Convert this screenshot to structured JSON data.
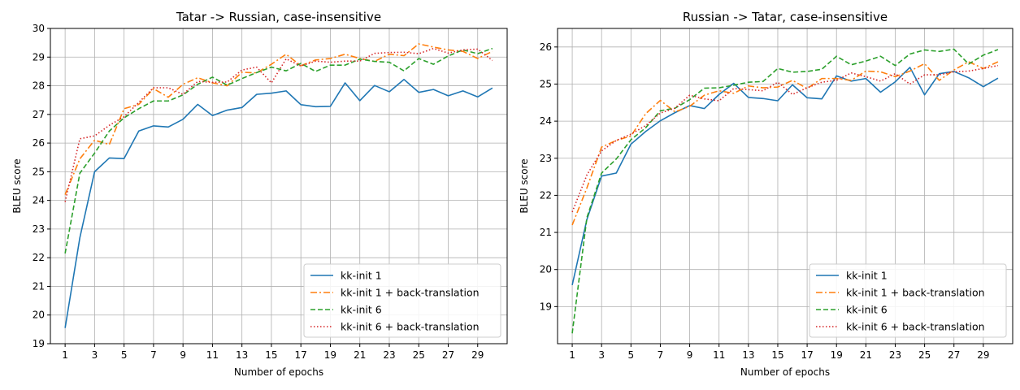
{
  "chart_data": [
    {
      "type": "line",
      "title": "Tatar -> Russian, case-insensitive",
      "xlabel": "Number of epochs",
      "ylabel": "BLEU score",
      "xlim": [
        0,
        31
      ],
      "ylim": [
        19,
        30
      ],
      "xticks": [
        1,
        3,
        5,
        7,
        9,
        11,
        13,
        15,
        17,
        19,
        21,
        23,
        25,
        27,
        29
      ],
      "yticks": [
        19,
        20,
        21,
        22,
        23,
        24,
        25,
        26,
        27,
        28,
        29,
        30
      ],
      "grid": true,
      "legend_position": "lower-right",
      "x": [
        1,
        2,
        3,
        4,
        5,
        6,
        7,
        8,
        9,
        10,
        11,
        12,
        13,
        14,
        15,
        16,
        17,
        18,
        19,
        20,
        21,
        22,
        23,
        24,
        25,
        26,
        27,
        28,
        29,
        30
      ],
      "series": [
        {
          "name": "kk-init 1",
          "color": "#1f77b4",
          "dash": "solid",
          "values": [
            19.55,
            22.7,
            25.0,
            25.48,
            25.46,
            26.42,
            26.6,
            26.56,
            26.83,
            27.35,
            26.96,
            27.15,
            27.24,
            27.7,
            27.74,
            27.82,
            27.34,
            27.27,
            27.28,
            28.1,
            27.48,
            28.01,
            27.79,
            28.22,
            27.77,
            27.87,
            27.65,
            27.82,
            27.61,
            27.92
          ]
        },
        {
          "name": "kk-init 1 + back-translation",
          "color": "#ff7f0e",
          "dash": "dashdot",
          "values": [
            24.2,
            25.45,
            26.1,
            25.95,
            27.2,
            27.35,
            27.9,
            27.6,
            28.05,
            28.28,
            28.1,
            28.0,
            28.47,
            28.45,
            28.75,
            29.1,
            28.7,
            28.9,
            28.95,
            29.1,
            28.95,
            28.85,
            29.1,
            29.05,
            29.46,
            29.35,
            29.25,
            29.2,
            28.95,
            29.2
          ]
        },
        {
          "name": "kk-init 6",
          "color": "#2ca02c",
          "dash": "dashed",
          "values": [
            22.15,
            24.95,
            25.65,
            26.42,
            26.88,
            27.2,
            27.47,
            27.47,
            27.68,
            28.05,
            28.3,
            28.02,
            28.25,
            28.46,
            28.65,
            28.52,
            28.78,
            28.5,
            28.72,
            28.72,
            28.93,
            28.85,
            28.82,
            28.52,
            28.95,
            28.75,
            29.04,
            29.25,
            29.12,
            29.3
          ]
        },
        {
          "name": "kk-init 6 + back-translation",
          "color": "#d62728",
          "dash": "dotted",
          "values": [
            23.95,
            26.15,
            26.25,
            26.62,
            26.92,
            27.42,
            27.93,
            27.93,
            27.7,
            28.15,
            28.12,
            28.13,
            28.55,
            28.65,
            28.1,
            28.94,
            28.69,
            28.86,
            28.82,
            28.86,
            28.86,
            29.13,
            29.16,
            29.17,
            29.12,
            29.3,
            29.14,
            29.25,
            29.28,
            28.88
          ]
        }
      ]
    },
    {
      "type": "line",
      "title": "Russian -> Tatar, case-insensitive",
      "xlabel": "Number of epochs",
      "ylabel": "BLEU score",
      "xlim": [
        0,
        31
      ],
      "ylim": [
        18,
        26.5
      ],
      "xticks": [
        1,
        3,
        5,
        7,
        9,
        11,
        13,
        15,
        17,
        19,
        21,
        23,
        25,
        27,
        29
      ],
      "yticks": [
        19,
        20,
        21,
        22,
        23,
        24,
        25,
        26
      ],
      "grid": true,
      "legend_position": "lower-right",
      "x": [
        1,
        2,
        3,
        4,
        5,
        6,
        7,
        8,
        9,
        10,
        11,
        12,
        13,
        14,
        15,
        16,
        17,
        18,
        19,
        20,
        21,
        22,
        23,
        24,
        25,
        26,
        27,
        28,
        29,
        30
      ],
      "series": [
        {
          "name": "kk-init 1",
          "color": "#1f77b4",
          "dash": "solid",
          "values": [
            19.58,
            21.35,
            22.52,
            22.6,
            23.38,
            23.72,
            24.01,
            24.23,
            24.42,
            24.34,
            24.72,
            25.02,
            24.64,
            24.61,
            24.55,
            24.98,
            24.63,
            24.6,
            25.22,
            25.08,
            25.15,
            24.78,
            25.06,
            25.45,
            24.71,
            25.28,
            25.34,
            25.17,
            24.93,
            25.16
          ]
        },
        {
          "name": "kk-init 1 + back-translation",
          "color": "#ff7f0e",
          "dash": "dashdot",
          "values": [
            21.2,
            22.2,
            23.3,
            23.48,
            23.6,
            24.2,
            24.56,
            24.25,
            24.4,
            24.7,
            24.82,
            24.75,
            24.95,
            24.9,
            24.92,
            25.1,
            24.88,
            25.15,
            25.15,
            25.1,
            25.35,
            25.33,
            25.2,
            25.35,
            25.55,
            25.1,
            25.38,
            25.6,
            25.42,
            25.6
          ]
        },
        {
          "name": "kk-init 6",
          "color": "#2ca02c",
          "dash": "dashed",
          "values": [
            18.28,
            21.4,
            22.6,
            22.98,
            23.5,
            23.82,
            24.28,
            24.35,
            24.58,
            24.89,
            24.9,
            24.97,
            25.05,
            25.07,
            25.42,
            25.32,
            25.34,
            25.4,
            25.75,
            25.52,
            25.62,
            25.75,
            25.5,
            25.81,
            25.92,
            25.88,
            25.94,
            25.54,
            25.78,
            25.93
          ]
        },
        {
          "name": "kk-init 6 + back-translation",
          "color": "#d62728",
          "dash": "dotted",
          "values": [
            21.55,
            22.55,
            23.2,
            23.48,
            23.65,
            23.88,
            24.22,
            24.35,
            24.7,
            24.6,
            24.55,
            24.88,
            24.85,
            24.82,
            25.05,
            24.72,
            24.9,
            25.05,
            25.1,
            25.3,
            25.2,
            25.08,
            25.28,
            25.0,
            25.25,
            25.25,
            25.33,
            25.35,
            25.42,
            25.5
          ]
        }
      ]
    }
  ]
}
